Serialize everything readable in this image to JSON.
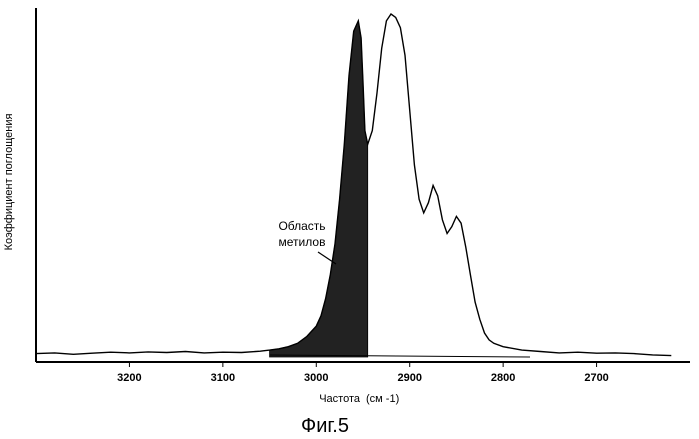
{
  "chart_data": {
    "type": "line",
    "title": "",
    "xlabel": "Частота",
    "xlabel_unit": "(см -1)",
    "ylabel": "Коэффициент поглощения",
    "xlim": [
      3300,
      2600
    ],
    "x_reversed": true,
    "x_ticks": [
      3200,
      3100,
      3000,
      2900,
      2800,
      2700
    ],
    "y_ticks_shown": false,
    "grid": false,
    "series": [
      {
        "fill_region": {
          "from": 3050,
          "to": 2945,
          "color": "#222222"
        },
        "x": [
          3300,
          3280,
          3260,
          3240,
          3220,
          3200,
          3180,
          3160,
          3140,
          3120,
          3100,
          3080,
          3060,
          3050,
          3040,
          3030,
          3020,
          3010,
          3000,
          2995,
          2990,
          2985,
          2980,
          2975,
          2970,
          2965,
          2960,
          2955,
          2952,
          2950,
          2948,
          2945,
          2940,
          2935,
          2930,
          2925,
          2920,
          2915,
          2910,
          2905,
          2900,
          2895,
          2890,
          2885,
          2880,
          2875,
          2870,
          2865,
          2860,
          2855,
          2850,
          2845,
          2840,
          2835,
          2830,
          2825,
          2820,
          2815,
          2810,
          2800,
          2780,
          2760,
          2740,
          2720,
          2700,
          2680,
          2660,
          2640,
          2620
        ],
        "y": [
          0.01,
          0.012,
          0.008,
          0.011,
          0.014,
          0.012,
          0.015,
          0.013,
          0.016,
          0.012,
          0.014,
          0.013,
          0.017,
          0.02,
          0.024,
          0.03,
          0.04,
          0.06,
          0.09,
          0.12,
          0.17,
          0.24,
          0.33,
          0.46,
          0.62,
          0.82,
          0.95,
          0.98,
          0.93,
          0.8,
          0.66,
          0.62,
          0.66,
          0.77,
          0.9,
          0.98,
          1.0,
          0.99,
          0.96,
          0.88,
          0.72,
          0.56,
          0.46,
          0.42,
          0.45,
          0.5,
          0.47,
          0.4,
          0.36,
          0.38,
          0.41,
          0.39,
          0.32,
          0.24,
          0.16,
          0.11,
          0.07,
          0.05,
          0.04,
          0.03,
          0.02,
          0.016,
          0.012,
          0.014,
          0.011,
          0.012,
          0.01,
          0.006,
          0.004
        ]
      }
    ],
    "annotations": [
      {
        "text_line1": "Область",
        "text_line2": "метилов",
        "points_to_x": 2985
      }
    ]
  },
  "figure_caption": "Фиг.5"
}
